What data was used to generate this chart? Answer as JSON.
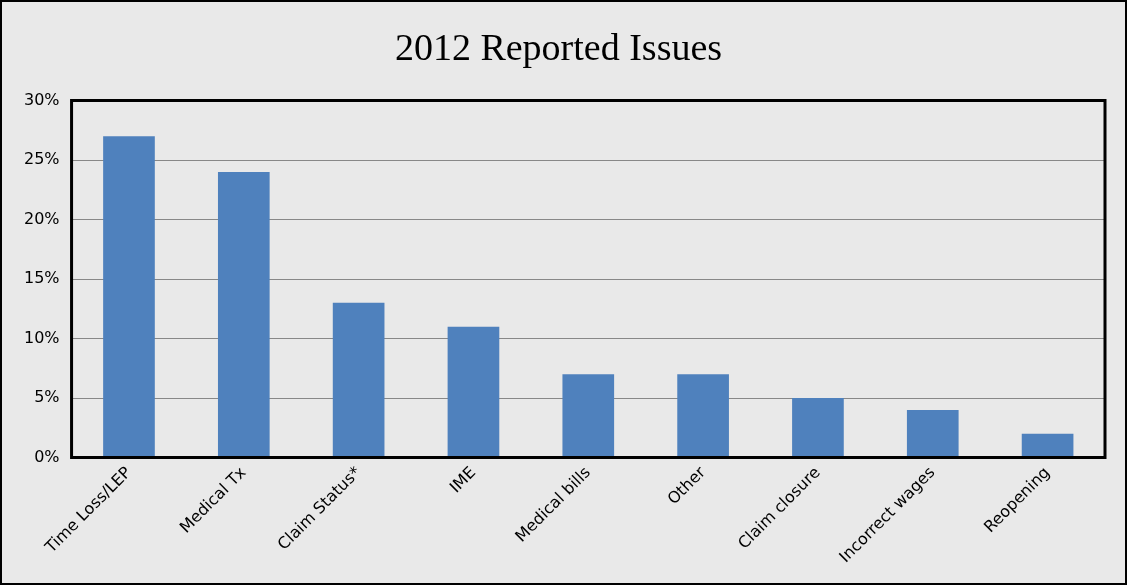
{
  "chart_data": {
    "type": "bar",
    "title": "2012 Reported Issues",
    "categories": [
      "Time Loss/LEP",
      "Medical Tx",
      "Claim Status*",
      "IME",
      "Medical bills",
      "Other",
      "Claim closure",
      "Incorrect wages",
      "Reopening"
    ],
    "values": [
      27,
      24,
      13,
      11,
      7,
      7,
      5,
      4,
      2
    ],
    "color": "#4f81bd",
    "ylim": [
      0,
      30
    ],
    "yticks": [
      {
        "value": 0,
        "label": "0%"
      },
      {
        "value": 5,
        "label": "5%"
      },
      {
        "value": 10,
        "label": "10%"
      },
      {
        "value": 15,
        "label": "15%"
      },
      {
        "value": 20,
        "label": "20%"
      },
      {
        "value": 25,
        "label": "25%"
      },
      {
        "value": 30,
        "label": "30%"
      }
    ],
    "grid": "y",
    "legend": false
  }
}
